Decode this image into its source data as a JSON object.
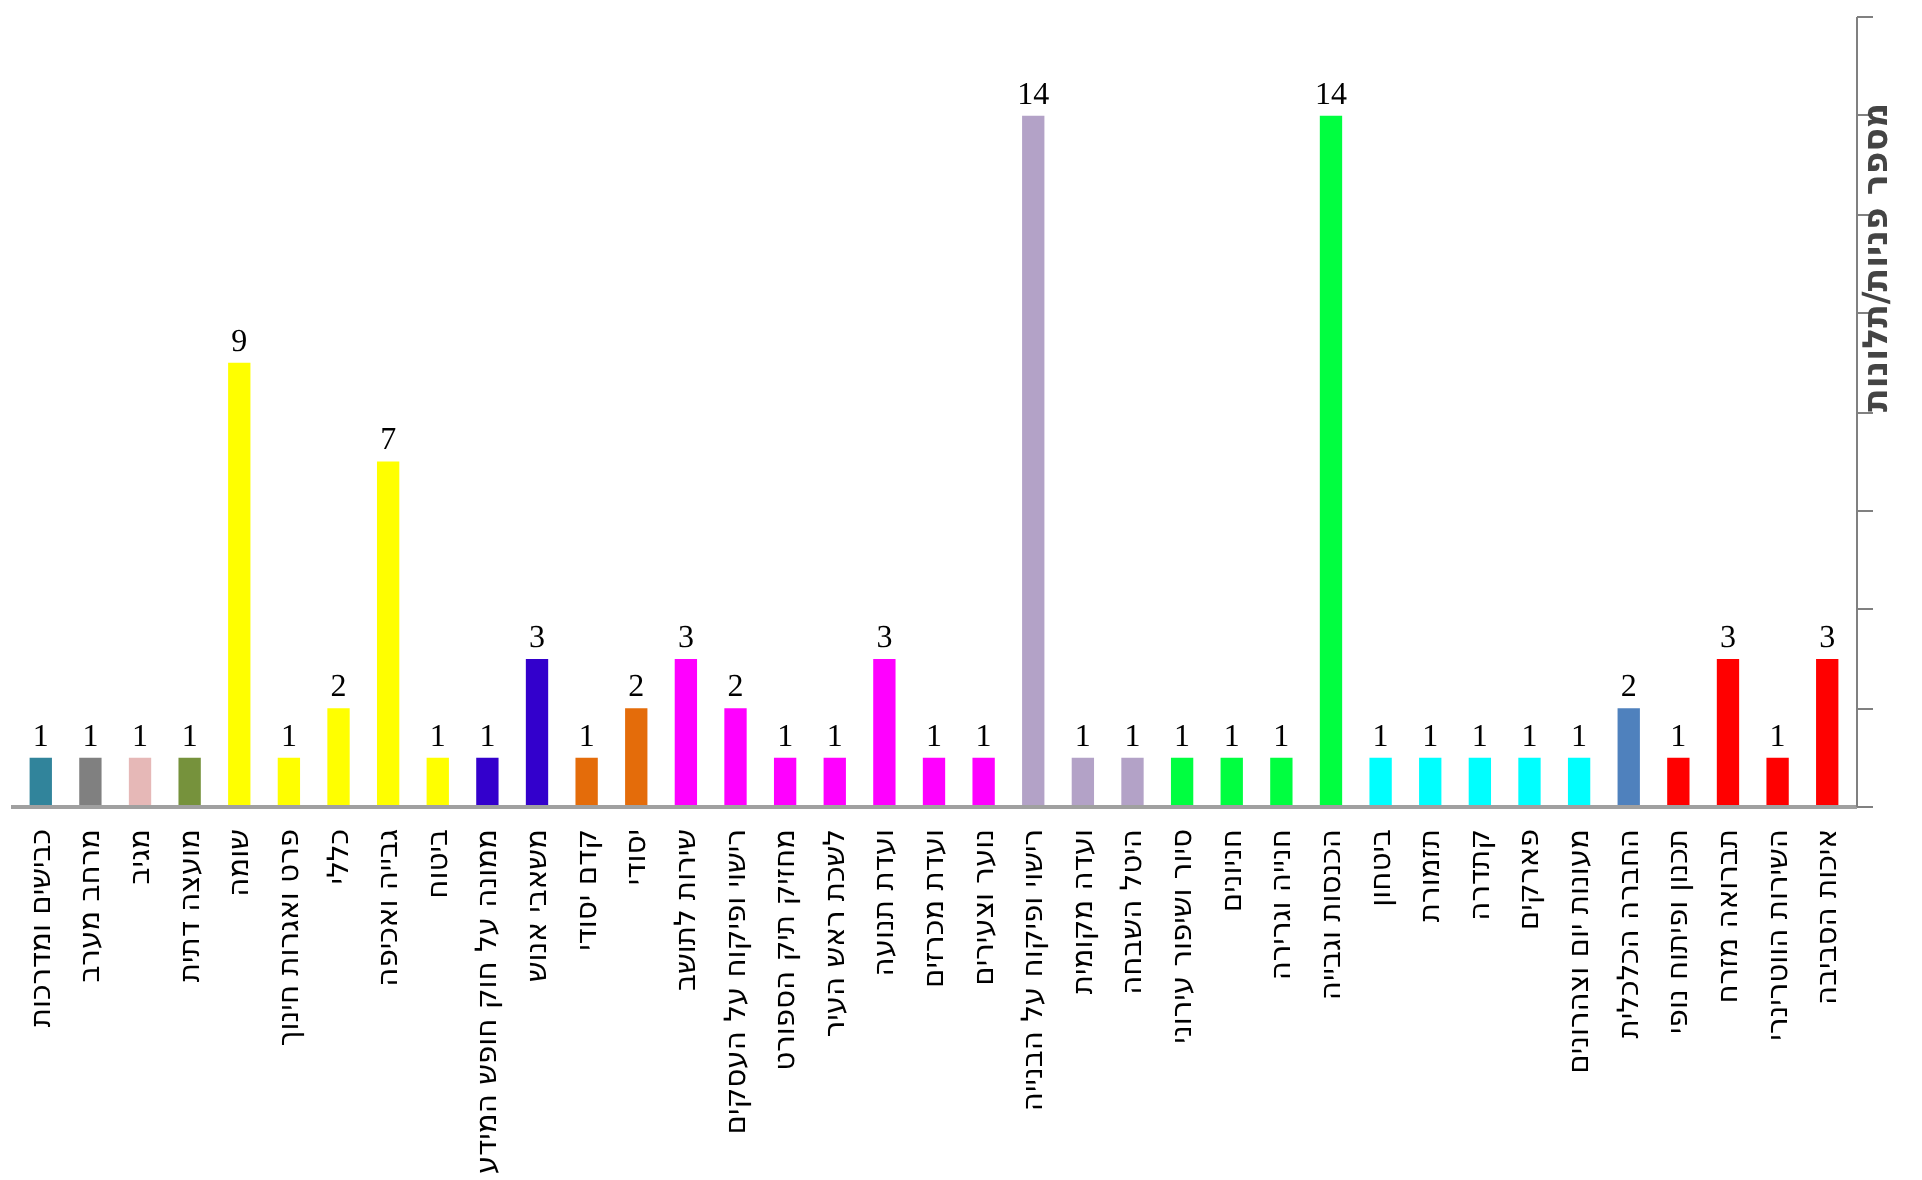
{
  "chart_data": {
    "type": "bar",
    "ylabel": "מספר פניות/תלונות",
    "categories": [
      "כבישים ומדרכות",
      "מרחב מערב",
      "מגיב",
      "מועצה דתית",
      "שומה",
      "פרט ואגרות חינוך",
      "כללי",
      "גבייה ואכיפה",
      "ביטוח",
      "ממונה על חוק חופש המידע",
      "משאבי אנוש",
      "קדם יסודי",
      "יסודי",
      "שירות לתושב",
      "רישוי ופיקוח על העסקים",
      "מחזיק תיק הספורט",
      "לשכת ראש העיר",
      "ועדת תנועה",
      "ועדת מכרזים",
      "נוער וצעירים",
      "רישוי ופיקוח על הבנייה",
      "ועדה מקומית",
      "היטל השבחה",
      "סיור ושיפור עירוני",
      "חניונים",
      "חנייה וגרירה",
      "הכנסות וגבייה",
      "ביטחון",
      "תזמורת",
      "קתדרה",
      "פארקים",
      "מעונות יום וצהרונים",
      "החברה הכלכלית",
      "תכנון ופיתוח נופי",
      "תברואה מזרח",
      "השירות הווטרינרי",
      "איכות הסביבה"
    ],
    "values": [
      1,
      1,
      1,
      1,
      9,
      1,
      2,
      7,
      1,
      1,
      3,
      1,
      2,
      3,
      2,
      1,
      1,
      3,
      1,
      1,
      14,
      1,
      1,
      1,
      1,
      1,
      14,
      1,
      1,
      1,
      1,
      1,
      2,
      1,
      3,
      1,
      3
    ],
    "colors": [
      "#31849b",
      "#808080",
      "#e6b8b7",
      "#76923c",
      "#ffff00",
      "#ffff00",
      "#ffff00",
      "#ffff00",
      "#ffff00",
      "#3300cc",
      "#3300cc",
      "#e46c0a",
      "#e46c0a",
      "#ff00ff",
      "#ff00ff",
      "#ff00ff",
      "#ff00ff",
      "#ff00ff",
      "#ff00ff",
      "#ff00ff",
      "#b3a2c7",
      "#b3a2c7",
      "#b3a2c7",
      "#00ff40",
      "#00ff40",
      "#00ff40",
      "#00ff40",
      "#00ffff",
      "#00ffff",
      "#00ffff",
      "#00ffff",
      "#00ffff",
      "#4f81bd",
      "#ff0000",
      "#ff0000",
      "#ff0000",
      "#ff0000"
    ],
    "ylim": [
      0,
      16
    ],
    "yticks": [
      {
        "value": 0,
        "label": null
      },
      {
        "value": 2,
        "label": null
      },
      {
        "value": 4,
        "label": null
      },
      {
        "value": 6,
        "label": null
      },
      {
        "value": 8,
        "label": null
      },
      {
        "value": 10,
        "label": null
      },
      {
        "value": 12,
        "label": null
      },
      {
        "value": 14,
        "label": null
      },
      {
        "value": 16,
        "label": null
      }
    ],
    "tick_labels": "x",
    "data_labels": true,
    "grid": false
  }
}
